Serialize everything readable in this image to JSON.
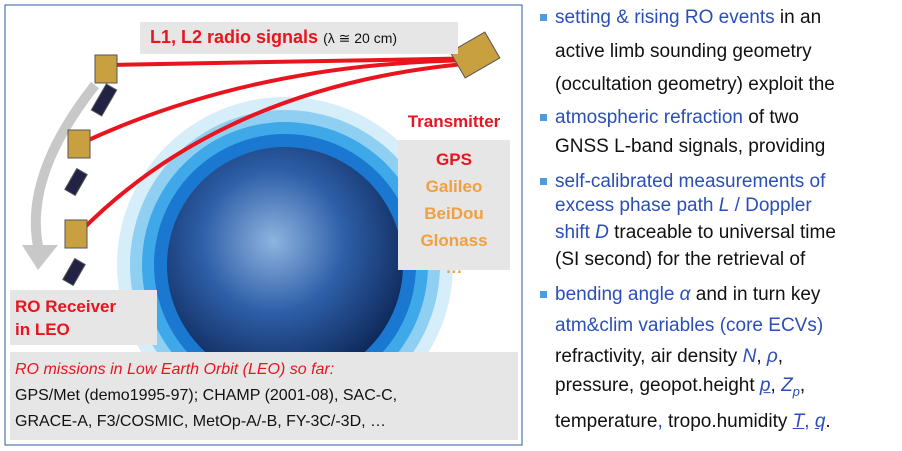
{
  "signals": {
    "label": "L1, L2 radio signals",
    "wavelength": "(λ ≅ 20 cm)"
  },
  "transmitter": {
    "label": "Transmitter",
    "systems": [
      "GPS",
      "Galileo",
      "BeiDou",
      "Glonass",
      "…"
    ]
  },
  "receiver": {
    "label": [
      "RO Receiver",
      "in LEO"
    ]
  },
  "missions": {
    "title": "RO missions in Low Earth Orbit (LEO) so far:",
    "lines": [
      "GPS/Met (demo1995-97); CHAMP (2001-08), SAC-C,",
      "GRACE-A, F3/COSMIC, MetOp-A/-B, FY-3C/-3D, …"
    ]
  },
  "bullets": [
    [
      [
        "setting & rising RO events",
        " in an"
      ],
      [
        "active limb sounding geometry"
      ],
      [
        "(occultation geometry) exploit the"
      ]
    ],
    [
      [
        "atmospheric refraction",
        " of two"
      ],
      [
        "GNSS L-band signals, providing"
      ]
    ],
    [
      [
        "self-calibrated measurements of"
      ],
      [
        "excess phase path ",
        "L",
        " / Doppler"
      ],
      [
        "shift ",
        "D",
        " traceable to universal time"
      ],
      [
        "(SI second) for the retrieval of"
      ]
    ],
    [
      [
        "bending angle ",
        "α",
        " and in turn key"
      ],
      [
        "atm&clim variables (core ECVs)"
      ],
      [
        "refractivity, air density ",
        "N",
        ", ",
        "ρ",
        ","
      ],
      [
        "pressure, geopot.height ",
        "p",
        ", ",
        "Z",
        "p",
        ","
      ],
      [
        "temperature",
        ", ",
        "tropo.humidity ",
        "T",
        ", ",
        "q",
        "."
      ]
    ]
  ]
}
